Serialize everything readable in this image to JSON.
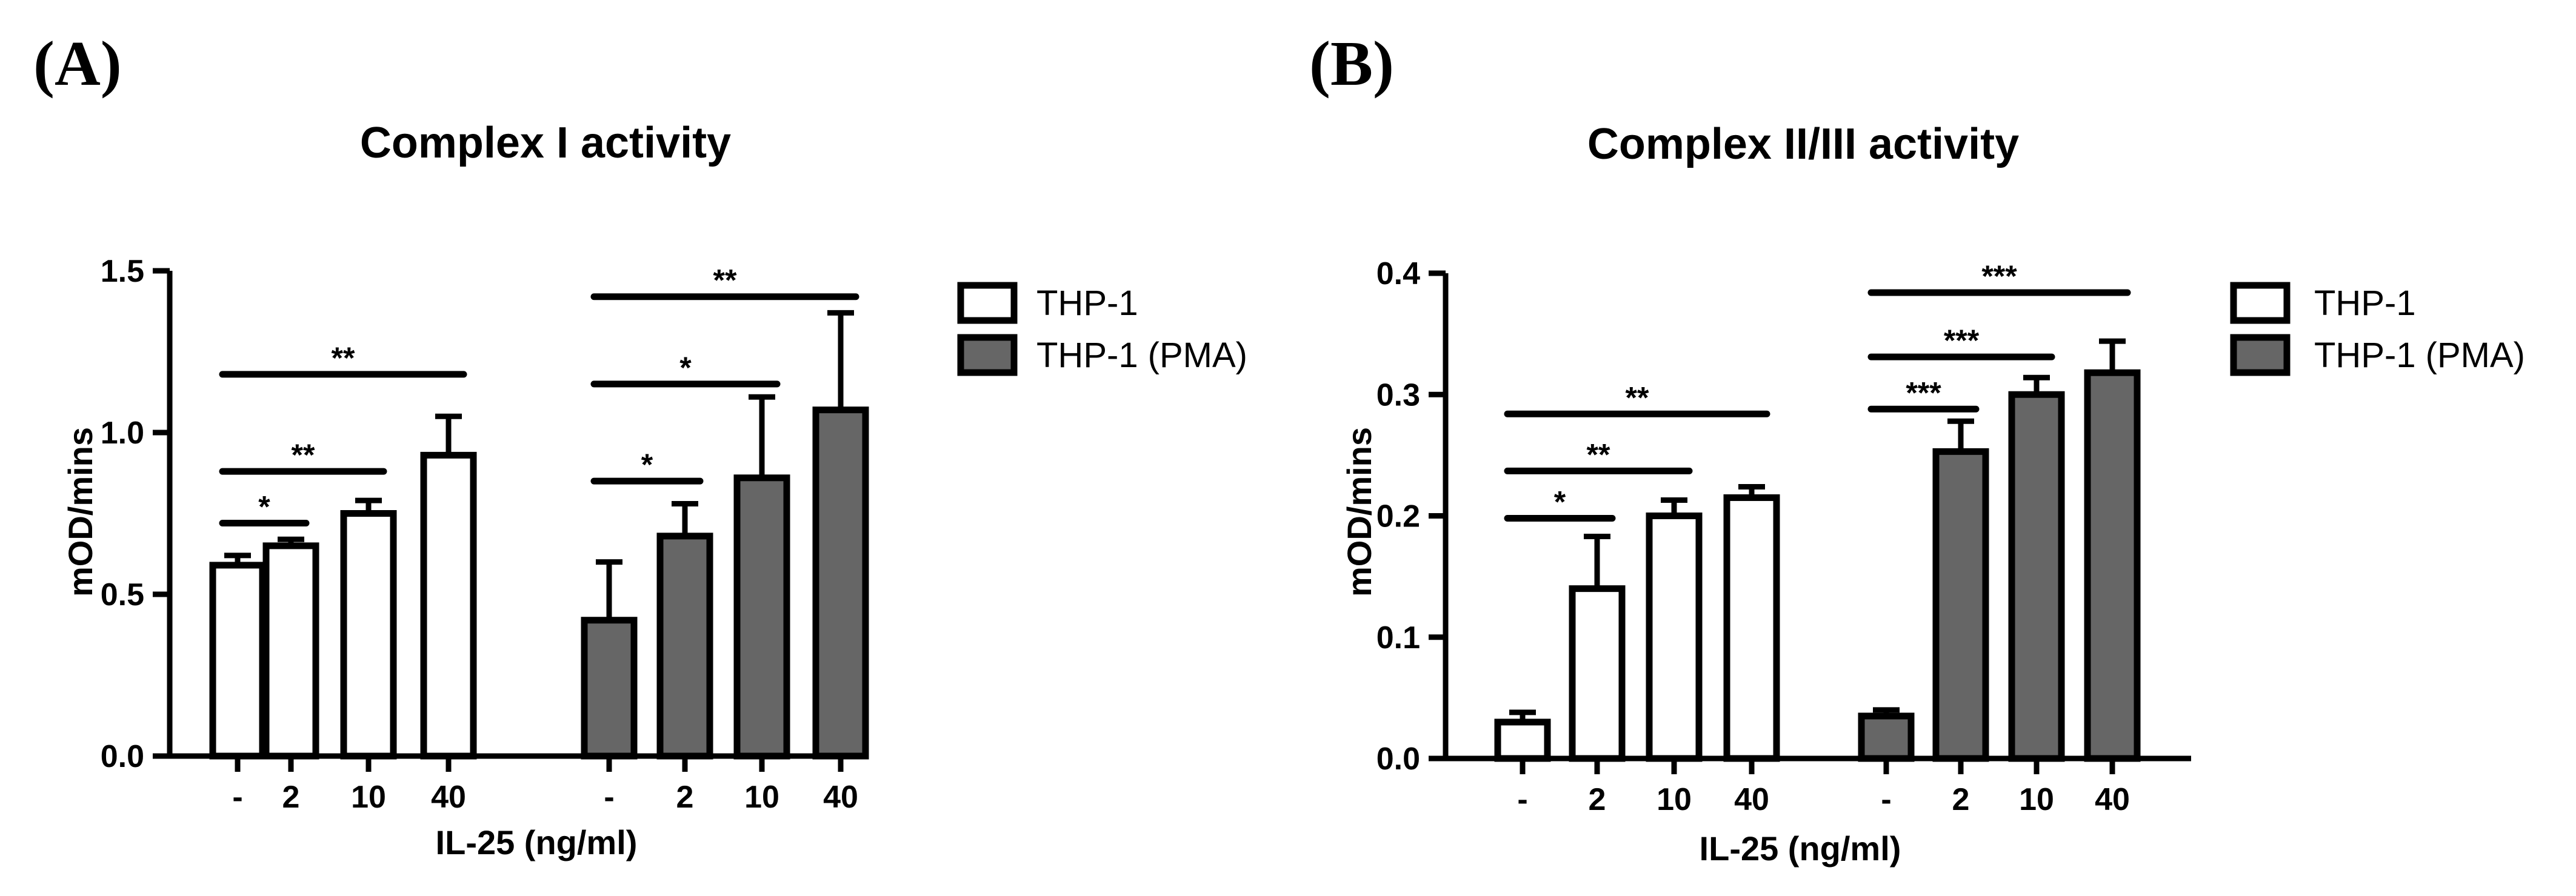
{
  "panels": [
    {
      "panel_label": "(A)",
      "chart_data": {
        "type": "bar",
        "title": "Complex I activity",
        "ylabel": "mOD/mins",
        "xlabel": "IL-25 (ng/ml)",
        "ylim": [
          0,
          1.5
        ],
        "yticks": [
          0.0,
          0.5,
          1.0,
          1.5
        ],
        "ytick_labels": [
          "0.0",
          "0.5",
          "1.0",
          "1.5"
        ],
        "categories": [
          "-",
          "2",
          "10",
          "40"
        ],
        "grid": false,
        "legend_position": "right",
        "series": [
          {
            "name": "THP-1",
            "color": "#ffffff",
            "values": [
              0.59,
              0.65,
              0.75,
              0.93
            ],
            "errors": [
              0.03,
              0.02,
              0.04,
              0.12
            ]
          },
          {
            "name": "THP-1 (PMA)",
            "color": "#666666",
            "values": [
              0.42,
              0.68,
              0.86,
              1.07
            ],
            "errors": [
              0.18,
              0.1,
              0.25,
              0.3
            ]
          }
        ],
        "significance": [
          {
            "series": 0,
            "from": 0,
            "to": 1,
            "y": 0.72,
            "label": "*"
          },
          {
            "series": 0,
            "from": 0,
            "to": 2,
            "y": 0.88,
            "label": "**"
          },
          {
            "series": 0,
            "from": 0,
            "to": 3,
            "y": 1.18,
            "label": "**"
          },
          {
            "series": 1,
            "from": 0,
            "to": 1,
            "y": 0.85,
            "label": "*"
          },
          {
            "series": 1,
            "from": 0,
            "to": 2,
            "y": 1.15,
            "label": "*"
          },
          {
            "series": 1,
            "from": 0,
            "to": 3,
            "y": 1.42,
            "label": "**"
          }
        ]
      }
    },
    {
      "panel_label": "(B)",
      "chart_data": {
        "type": "bar",
        "title": "Complex II/III activity",
        "ylabel": "mOD/mins",
        "xlabel": "IL-25 (ng/ml)",
        "ylim": [
          0,
          0.4
        ],
        "yticks": [
          0.0,
          0.1,
          0.2,
          0.3,
          0.4
        ],
        "ytick_labels": [
          "0.0",
          "0.1",
          "0.2",
          "0.3",
          "0.4"
        ],
        "categories": [
          "-",
          "2",
          "10",
          "40"
        ],
        "grid": false,
        "legend_position": "right",
        "series": [
          {
            "name": "THP-1",
            "color": "#ffffff",
            "values": [
              0.03,
              0.14,
              0.2,
              0.215
            ],
            "errors": [
              0.008,
              0.043,
              0.013,
              0.009
            ]
          },
          {
            "name": "THP-1 (PMA)",
            "color": "#666666",
            "values": [
              0.035,
              0.253,
              0.3,
              0.318
            ],
            "errors": [
              0.005,
              0.025,
              0.014,
              0.026
            ]
          }
        ],
        "significance": [
          {
            "series": 0,
            "from": 0,
            "to": 1,
            "y": 0.198,
            "label": "*"
          },
          {
            "series": 0,
            "from": 0,
            "to": 2,
            "y": 0.237,
            "label": "**"
          },
          {
            "series": 0,
            "from": 0,
            "to": 3,
            "y": 0.284,
            "label": "**"
          },
          {
            "series": 1,
            "from": 0,
            "to": 1,
            "y": 0.288,
            "label": "***"
          },
          {
            "series": 1,
            "from": 0,
            "to": 2,
            "y": 0.331,
            "label": "***"
          },
          {
            "series": 1,
            "from": 0,
            "to": 3,
            "y": 0.384,
            "label": "***"
          }
        ]
      }
    }
  ]
}
